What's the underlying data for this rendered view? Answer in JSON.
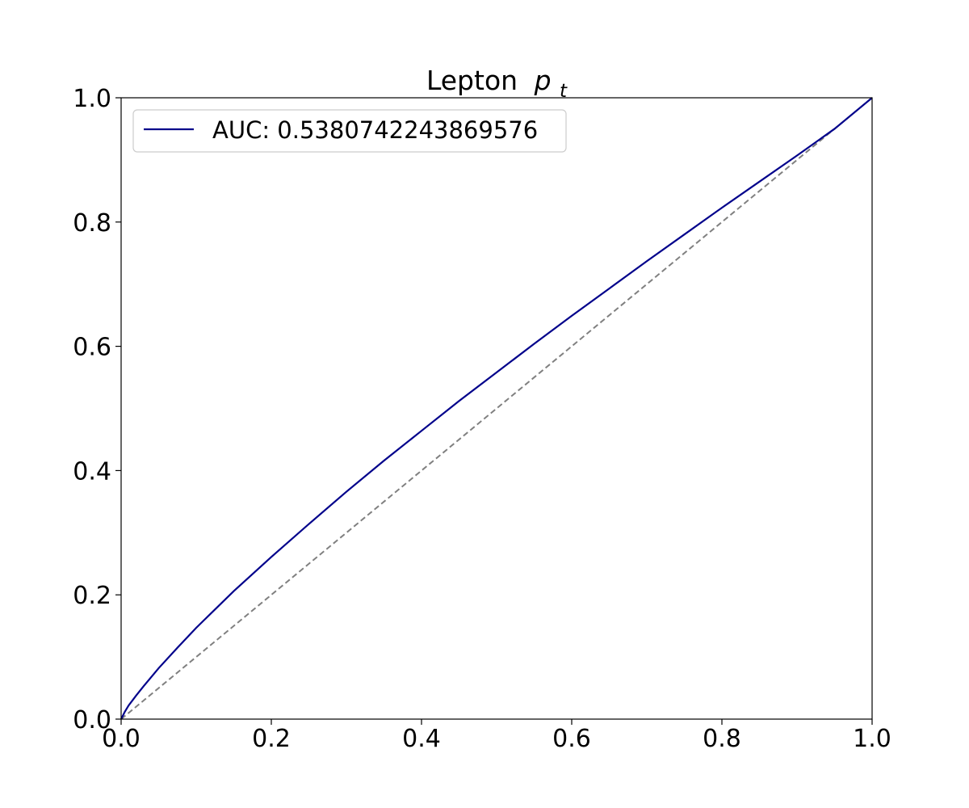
{
  "chart_data": {
    "type": "line",
    "title": "Lepton",
    "title_math": "p",
    "title_math_sub": "t",
    "xlabel": "",
    "ylabel": "",
    "xlim": [
      0.0,
      1.0
    ],
    "ylim": [
      0.0,
      1.0
    ],
    "x_ticks": [
      "0.0",
      "0.2",
      "0.4",
      "0.6",
      "0.8",
      "1.0"
    ],
    "y_ticks": [
      "0.0",
      "0.2",
      "0.4",
      "0.6",
      "0.8",
      "1.0"
    ],
    "grid": false,
    "legend_position": "upper-left",
    "series": [
      {
        "name": "AUC: 0.5380742243869576",
        "color": "#00008b",
        "style": "solid",
        "x": [
          0.0,
          0.005,
          0.01,
          0.02,
          0.03,
          0.05,
          0.075,
          0.1,
          0.15,
          0.2,
          0.25,
          0.3,
          0.35,
          0.4,
          0.45,
          0.5,
          0.55,
          0.6,
          0.65,
          0.7,
          0.75,
          0.8,
          0.85,
          0.9,
          0.95,
          1.0
        ],
        "y": [
          0.0,
          0.012,
          0.022,
          0.038,
          0.053,
          0.082,
          0.115,
          0.147,
          0.206,
          0.261,
          0.314,
          0.366,
          0.416,
          0.464,
          0.512,
          0.558,
          0.604,
          0.649,
          0.693,
          0.737,
          0.78,
          0.823,
          0.865,
          0.907,
          0.95,
          1.0
        ]
      },
      {
        "color": "#808080",
        "style": "dashed",
        "x": [
          0.0,
          1.0
        ],
        "y": [
          0.0,
          1.0
        ]
      }
    ]
  }
}
